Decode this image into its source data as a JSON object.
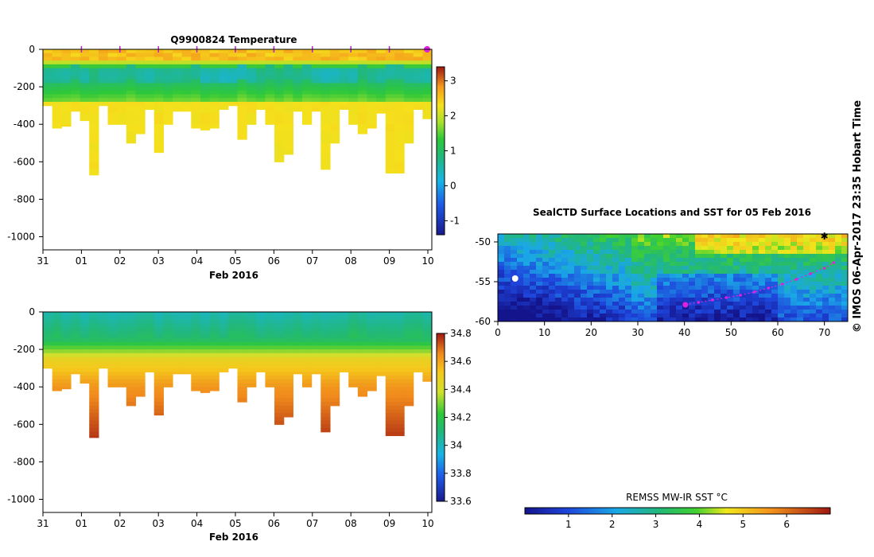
{
  "chart_data": [
    {
      "type": "heatmap",
      "title": "Q9900824  Temperature",
      "xlabel": "Feb 2016",
      "ylabel": "",
      "x_ticks": [
        "31",
        "01",
        "02",
        "03",
        "04",
        "05",
        "06",
        "07",
        "08",
        "09",
        "10"
      ],
      "y_ticks": [
        0,
        -200,
        -400,
        -600,
        -800,
        -1000
      ],
      "ylim": [
        -1070,
        0
      ],
      "colorbar": {
        "ticks": [
          "3",
          "2",
          "1",
          "0",
          "-1"
        ],
        "range": [
          -1.4,
          3.4
        ]
      },
      "profile_max_depths": [
        300,
        420,
        410,
        330,
        380,
        670,
        300,
        400,
        400,
        500,
        450,
        320,
        550,
        400,
        330,
        330,
        420,
        430,
        420,
        320,
        300,
        480,
        400,
        320,
        400,
        600,
        560,
        330,
        400,
        330,
        640,
        500,
        320,
        400,
        450,
        420,
        340,
        660,
        660,
        500,
        320,
        370
      ]
    },
    {
      "type": "heatmap",
      "title": "",
      "xlabel": "Feb 2016",
      "ylabel": "",
      "x_ticks": [
        "31",
        "01",
        "02",
        "03",
        "04",
        "05",
        "06",
        "07",
        "08",
        "09",
        "10"
      ],
      "y_ticks": [
        0,
        -200,
        -400,
        -600,
        -800,
        -1000
      ],
      "ylim": [
        -1070,
        0
      ],
      "colorbar": {
        "ticks": [
          "34.8",
          "34.6",
          "34.4",
          "34.2",
          "34",
          "33.8",
          "33.6"
        ],
        "range": [
          33.6,
          34.8
        ]
      }
    },
    {
      "type": "heatmap",
      "title": "SealCTD Surface Locations and SST for 05 Feb 2016",
      "xlabel": "",
      "ylabel": "",
      "x_ticks": [
        "0",
        "10",
        "20",
        "30",
        "40",
        "50",
        "60",
        "70"
      ],
      "y_ticks": [
        "-50",
        "-55",
        "-60"
      ],
      "xlim": [
        0,
        75
      ],
      "ylim": [
        -60,
        -49
      ],
      "colorbar": {
        "label": "REMSS MW-IR SST °C",
        "ticks": [
          "1",
          "2",
          "3",
          "4",
          "5",
          "6"
        ],
        "range": [
          0,
          7
        ]
      }
    }
  ],
  "copyright": "© IMOS 06-Apr-2017 23:35 Hobart Time"
}
